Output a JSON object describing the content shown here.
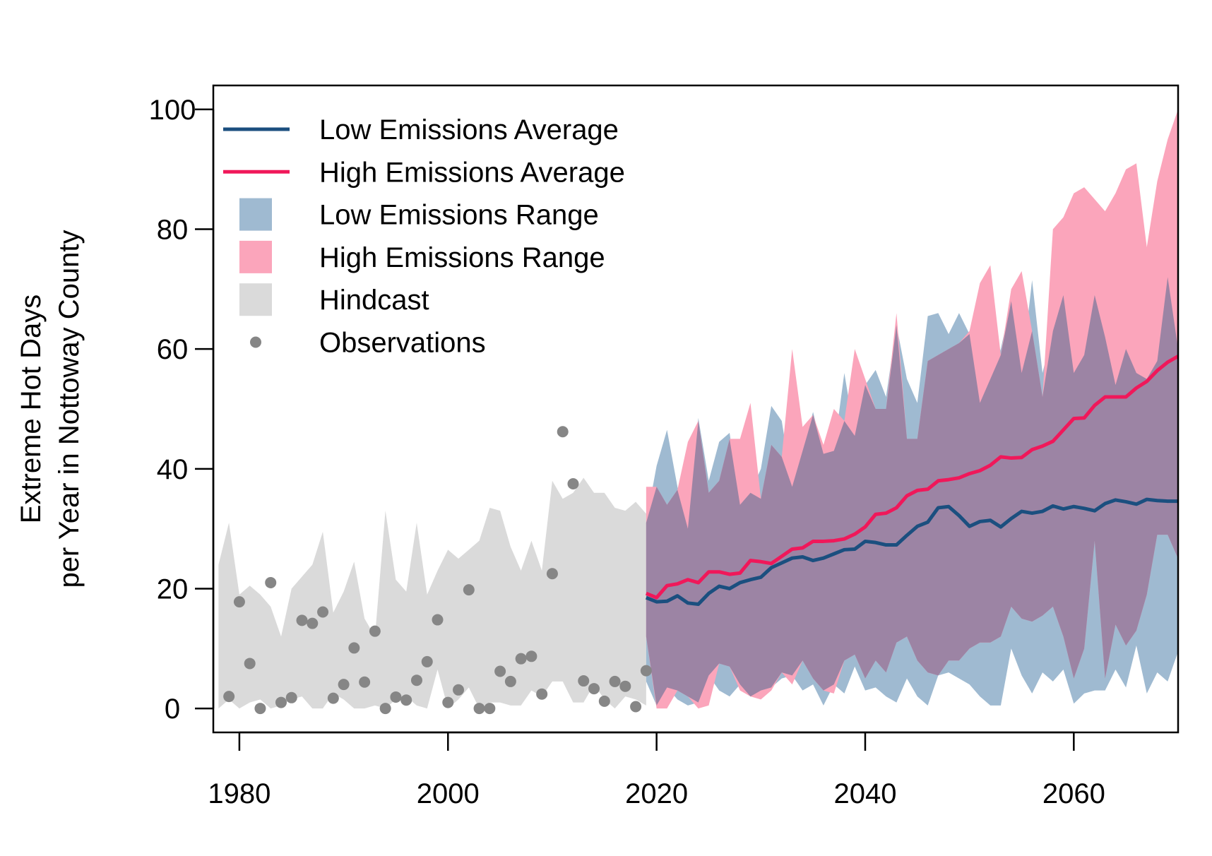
{
  "chart_data": {
    "type": "area",
    "title": "",
    "xlabel": "",
    "ylabel_lines": [
      "Extreme Hot Days",
      "per Year in Nottoway County"
    ],
    "xlim": [
      1977.5,
      2070
    ],
    "ylim": [
      -4,
      104
    ],
    "x_ticks": [
      1980,
      2000,
      2020,
      2040,
      2060
    ],
    "y_ticks": [
      0,
      20,
      40,
      60,
      80,
      100
    ],
    "grid": false,
    "legend_position": "top-left",
    "colors": {
      "low_line": "#1b4f7f",
      "high_line": "#f0185a",
      "low_range": "#9fbad1",
      "high_range": "#fba5bb",
      "overlap": "#9c84a4",
      "hindcast": "#dadada",
      "observations": "#868686"
    },
    "legend": [
      {
        "label": "Low Emissions Average",
        "kind": "line",
        "color": "#1b4f7f"
      },
      {
        "label": "High Emissions Average",
        "kind": "line",
        "color": "#f0185a"
      },
      {
        "label": "Low Emissions Range",
        "kind": "box",
        "color": "#9fbad1"
      },
      {
        "label": "High Emissions Range",
        "kind": "box",
        "color": "#fba5bb"
      },
      {
        "label": "Hindcast",
        "kind": "box",
        "color": "#dadada"
      },
      {
        "label": "Observations",
        "kind": "point",
        "color": "#868686"
      }
    ],
    "hindcast": {
      "x": [
        1978,
        1979,
        1980,
        1981,
        1982,
        1983,
        1984,
        1985,
        1986,
        1987,
        1988,
        1989,
        1990,
        1991,
        1992,
        1993,
        1994,
        1995,
        1996,
        1997,
        1998,
        1999,
        2000,
        2001,
        2002,
        2003,
        2004,
        2005,
        2006,
        2007,
        2008,
        2009,
        2010,
        2011,
        2012,
        2013,
        2014,
        2015,
        2016,
        2017,
        2018,
        2019
      ],
      "upper": [
        24,
        31,
        19,
        20.5,
        19,
        17,
        12,
        20,
        22,
        24,
        29.5,
        16,
        19.5,
        24.5,
        15,
        12,
        33,
        21.5,
        19.5,
        31,
        19,
        23,
        26.5,
        25,
        26.5,
        28,
        33.5,
        33,
        27,
        23,
        28,
        23,
        38,
        35,
        36,
        38.5,
        36,
        36,
        33.5,
        33,
        34.5,
        32.5
      ],
      "lower": [
        0,
        1.5,
        0,
        1,
        1.5,
        0,
        0.5,
        1.5,
        2,
        0,
        0,
        2.5,
        1.5,
        0,
        0,
        0.5,
        0,
        1.5,
        2,
        0.5,
        0,
        6.5,
        0,
        1.5,
        3.5,
        0,
        1,
        1,
        0.5,
        0.5,
        3,
        2,
        4.5,
        4.5,
        1,
        1,
        4,
        1.5,
        0,
        2,
        1.5,
        0.5
      ]
    },
    "observations": {
      "x": [
        1979,
        1980,
        1981,
        1982,
        1983,
        1984,
        1985,
        1986,
        1987,
        1988,
        1989,
        1990,
        1991,
        1992,
        1993,
        1994,
        1995,
        1996,
        1997,
        1998,
        1999,
        2000,
        2001,
        2002,
        2003,
        2004,
        2005,
        2006,
        2007,
        2008,
        2009,
        2010,
        2011,
        2012,
        2013,
        2014,
        2015,
        2016,
        2017,
        2018,
        2019
      ],
      "y": [
        2,
        17.8,
        7.5,
        0,
        21,
        1,
        1.8,
        14.7,
        14.2,
        16.1,
        1.7,
        4,
        10.1,
        4.4,
        12.9,
        0,
        1.9,
        1.4,
        4.7,
        7.8,
        14.8,
        1,
        3.1,
        19.8,
        0,
        0,
        6.2,
        4.5,
        8.3,
        8.7,
        2.4,
        22.5,
        46.2,
        37.5,
        4.6,
        3.3,
        1.2,
        4.5,
        3.7,
        0.3,
        6.3
      ]
    },
    "projection_x": [
      2019,
      2020,
      2021,
      2022,
      2023,
      2024,
      2025,
      2026,
      2027,
      2028,
      2029,
      2030,
      2031,
      2032,
      2033,
      2034,
      2035,
      2036,
      2037,
      2038,
      2039,
      2040,
      2041,
      2042,
      2043,
      2044,
      2045,
      2046,
      2047,
      2048,
      2049,
      2050,
      2051,
      2052,
      2053,
      2054,
      2055,
      2056,
      2057,
      2058,
      2059,
      2060,
      2061,
      2062,
      2063,
      2064,
      2065,
      2066,
      2067,
      2068,
      2069,
      2070
    ],
    "series": [
      {
        "name": "Low Emissions Average",
        "values": [
          18.5,
          17.8,
          17.9,
          18.8,
          17.6,
          17.4,
          19.2,
          20.4,
          20,
          21,
          21.5,
          21.9,
          23.5,
          24.3,
          25.1,
          25.3,
          24.7,
          25.1,
          25.8,
          26.5,
          26.6,
          27.9,
          27.7,
          27.3,
          27.3,
          28.9,
          30.4,
          31.1,
          33.5,
          33.7,
          32.2,
          30.4,
          31.2,
          31.4,
          30.3,
          31.7,
          32.9,
          32.6,
          32.9,
          33.8,
          33.3,
          33.7,
          33.4,
          33,
          34.2,
          34.8,
          34.5,
          34.1,
          34.9,
          34.7,
          34.6,
          34.6
        ]
      },
      {
        "name": "High Emissions Average",
        "values": [
          19.2,
          18.5,
          20.5,
          20.8,
          21.5,
          21,
          22.8,
          22.8,
          22.4,
          22.6,
          24.7,
          24.5,
          24.2,
          25.4,
          26.6,
          26.8,
          27.9,
          27.9,
          28,
          28.3,
          29.1,
          30.3,
          32.4,
          32.6,
          33.5,
          35.5,
          36.4,
          36.6,
          38,
          38.2,
          38.5,
          39.2,
          39.7,
          40.6,
          42,
          41.8,
          41.9,
          43.2,
          43.8,
          44.6,
          46.5,
          48.4,
          48.5,
          50.6,
          52,
          52,
          52,
          53.5,
          54.6,
          56.4,
          57.8,
          58.8
        ]
      }
    ],
    "low_range": {
      "upper": [
        31,
        40.5,
        46.5,
        37,
        30,
        48.5,
        38,
        44.5,
        46,
        34,
        36,
        40,
        50.5,
        48,
        37,
        43,
        49.5,
        42.5,
        43,
        56,
        45.5,
        54,
        56.5,
        52,
        64,
        55,
        51,
        65.5,
        66,
        62.5,
        66,
        62.5,
        51,
        55,
        60,
        68,
        56,
        71.5,
        56,
        63,
        69,
        56,
        59,
        69,
        62,
        54,
        60,
        56,
        55,
        58,
        72,
        60
      ],
      "upper_x": [
        2019,
        2020,
        2021,
        2022,
        2023,
        2024,
        2025,
        2026,
        2027,
        2028,
        2029,
        2030,
        2031,
        2032,
        2033,
        2034,
        2035,
        2036,
        2037,
        2038,
        2039,
        2040,
        2041,
        2042,
        2043,
        2044,
        2045,
        2046,
        2047,
        2048,
        2049,
        2050,
        2051,
        2052,
        2053,
        2054,
        2055,
        2056,
        2057,
        2058,
        2059,
        2060,
        2061,
        2062,
        2063,
        2064,
        2065,
        2066,
        2067,
        2068,
        2069,
        2070
      ],
      "lower": [
        4.5,
        0.5,
        3.5,
        1.5,
        0.5,
        1,
        5.5,
        3,
        2,
        4,
        2,
        3,
        3.5,
        5,
        5.5,
        3,
        4,
        0.5,
        4,
        2.5,
        7,
        3,
        3.5,
        2,
        1,
        5,
        2,
        0.5,
        5.5,
        6,
        5,
        4,
        2,
        0.5,
        0.5,
        10,
        5.5,
        2.5,
        6,
        4.5,
        6.5,
        0.8,
        2.5,
        3,
        3,
        6.5,
        3.5,
        10.5,
        2.5,
        6,
        4.5,
        9.5
      ]
    },
    "high_range": {
      "upper": [
        37,
        37,
        34,
        36.5,
        44.5,
        48,
        36,
        38,
        45,
        45,
        51,
        35,
        44,
        42,
        60,
        47,
        49,
        44,
        50,
        48,
        60,
        55,
        50,
        50,
        66,
        45,
        45,
        58,
        59,
        60,
        61,
        63,
        71,
        74,
        59,
        70,
        73,
        63,
        52,
        80,
        82,
        86,
        87,
        85,
        83,
        86,
        90,
        91,
        77,
        88,
        95,
        100
      ],
      "lower": [
        12,
        0,
        0,
        3,
        2,
        0,
        0.5,
        7.5,
        7,
        3,
        2,
        1.5,
        3,
        6,
        4,
        8,
        5,
        3,
        2.5,
        8,
        9,
        5,
        8,
        6,
        11,
        12,
        8,
        6,
        5.5,
        8,
        8,
        10,
        11,
        11,
        12,
        17,
        15,
        14.5,
        15.5,
        17,
        12,
        5,
        10,
        28,
        5,
        14,
        10.5,
        13,
        19,
        29,
        29,
        25
      ]
    }
  }
}
